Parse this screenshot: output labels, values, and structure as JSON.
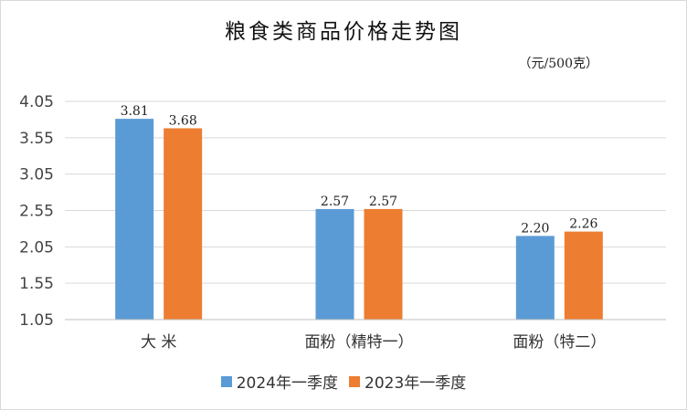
{
  "chart_data": {
    "type": "bar",
    "title": "粮食类商品价格走势图",
    "unit_label": "（元/500克）",
    "categories": [
      "大  米",
      "面粉（精特一）",
      "面粉（特二）"
    ],
    "series": [
      {
        "name": "2024年一季度",
        "color": "#5b9bd5",
        "values": [
          3.81,
          2.57,
          2.2
        ],
        "labels": [
          "3.81",
          "2.57",
          "2.20"
        ]
      },
      {
        "name": "2023年一季度",
        "color": "#ed7d31",
        "values": [
          3.68,
          2.57,
          2.26
        ],
        "labels": [
          "3.68",
          "2.57",
          "2.26"
        ]
      }
    ],
    "yticks": [
      "4.05",
      "3.55",
      "3.05",
      "2.55",
      "2.05",
      "1.55",
      "1.05"
    ],
    "ylim": [
      1.05,
      4.05
    ],
    "xlabel": "",
    "ylabel": "",
    "grid": true,
    "legend_position": "bottom"
  }
}
